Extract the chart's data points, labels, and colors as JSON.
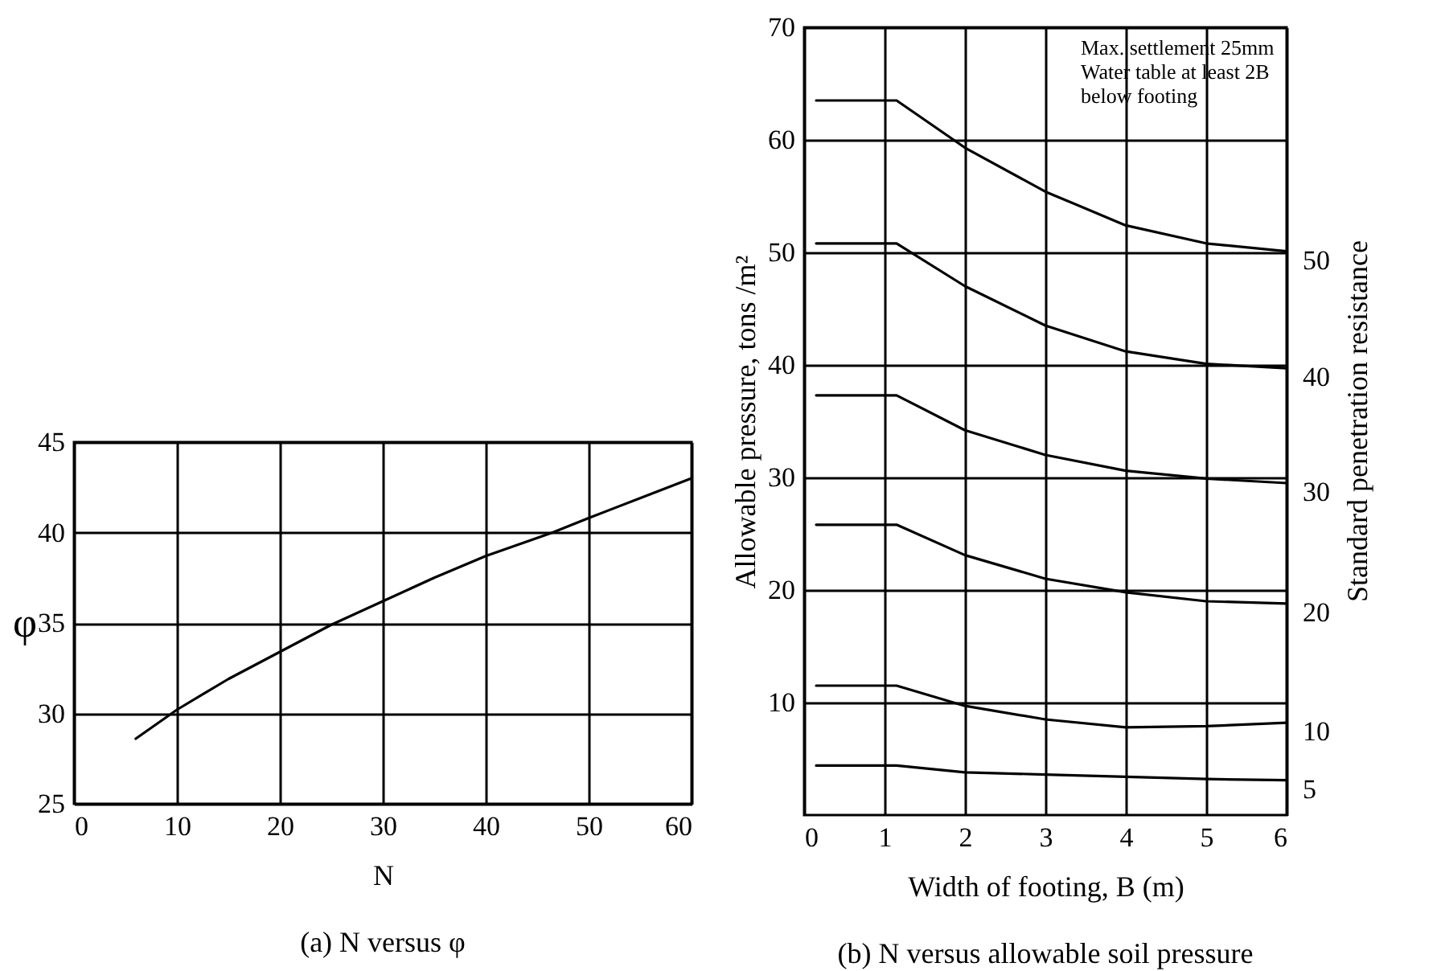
{
  "chart_data": [
    {
      "type": "line",
      "title": "(a) N versus φ",
      "xlabel": "N",
      "ylabel": "φ",
      "xlim": [
        0,
        60
      ],
      "ylim": [
        25,
        45
      ],
      "xticks": [
        0,
        10,
        20,
        30,
        40,
        50,
        60
      ],
      "yticks": [
        25,
        30,
        35,
        40,
        45
      ],
      "grid": true,
      "marker": "none",
      "line_style": "solid",
      "series": [
        {
          "color": "#000000",
          "x": [
            6,
            10,
            15,
            20,
            25,
            30,
            35,
            40,
            46.5,
            50,
            55,
            60
          ],
          "values": [
            28.6,
            30.2,
            31.9,
            33.4,
            34.9,
            36.2,
            37.5,
            38.7,
            40,
            40.8,
            41.9,
            43
          ]
        }
      ]
    },
    {
      "type": "line",
      "title": "(b) N versus allowable soil pressure",
      "xlabel": "Width of footing, B (m)",
      "ylabel": "Allowable pressure, tons /m²",
      "legend_title": "Standard penetration resistance",
      "xlim": [
        0,
        6
      ],
      "ylim": [
        0,
        70
      ],
      "xticks": [
        0,
        1,
        2,
        3,
        4,
        5,
        6
      ],
      "yticks": [
        10,
        20,
        30,
        40,
        50,
        60,
        70
      ],
      "grid": true,
      "marker": "none",
      "line_style": "solid",
      "annotations": [
        "Max. settlement 25mm",
        "Water table at least 2B",
        "below footing"
      ],
      "x": [
        0.15,
        1.15,
        2,
        3,
        4,
        5,
        6
      ],
      "series": [
        {
          "name": "50",
          "color": "#000000",
          "values": [
            63.5,
            63.5,
            59.3,
            55.4,
            52.4,
            50.8,
            50.1
          ]
        },
        {
          "name": "40",
          "color": "#000000",
          "values": [
            50.8,
            50.8,
            47,
            43.5,
            41.2,
            40.1,
            39.7
          ]
        },
        {
          "name": "30",
          "color": "#000000",
          "values": [
            37.3,
            37.3,
            34.2,
            32,
            30.6,
            29.9,
            29.5
          ]
        },
        {
          "name": "20",
          "color": "#000000",
          "values": [
            25.8,
            25.8,
            23.1,
            21,
            19.8,
            19,
            18.8
          ]
        },
        {
          "name": "10",
          "color": "#000000",
          "values": [
            11.5,
            11.5,
            9.7,
            8.5,
            7.8,
            7.9,
            8.2
          ]
        },
        {
          "name": "5",
          "color": "#000000",
          "values": [
            4.4,
            4.4,
            3.8,
            3.6,
            3.4,
            3.2,
            3.1
          ]
        }
      ]
    }
  ]
}
